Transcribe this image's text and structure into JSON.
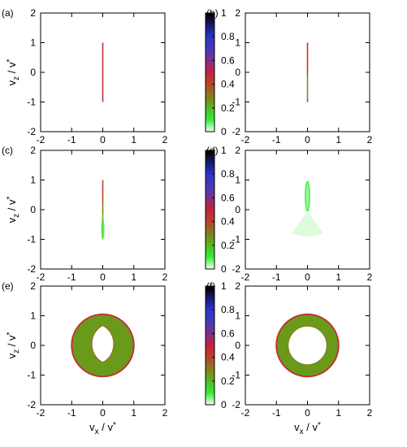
{
  "chart_data": [
    {
      "panel": "(a)",
      "type": "heatmap",
      "xlim": [
        -2,
        2
      ],
      "ylim": [
        -2,
        2
      ],
      "x_ticks": [
        "-2",
        "-1",
        "0",
        "1",
        "2"
      ],
      "y_ticks": [
        "-2",
        "-1",
        "0",
        "1",
        "2"
      ],
      "xlabel": "",
      "ylabel": "vz / v*",
      "colorbar": {
        "range": [
          0,
          1
        ],
        "ticks": [
          "0",
          "0.2",
          "0.4",
          "0.6",
          "0.8",
          "1"
        ]
      },
      "features": [
        {
          "kind": "vertical-line",
          "x": 0,
          "y": [
            -1,
            1
          ],
          "level": 0.45
        }
      ]
    },
    {
      "panel": "(b)",
      "type": "heatmap",
      "xlim": [
        -2,
        2
      ],
      "ylim": [
        -2,
        2
      ],
      "x_ticks": [
        "-2",
        "-1",
        "0",
        "1",
        "2"
      ],
      "y_ticks": [
        "-2",
        "-1",
        "0",
        "1",
        "2"
      ],
      "xlabel": "",
      "ylabel": "",
      "colorbar": {
        "range": [
          0,
          1
        ],
        "ticks": [
          "0",
          "0.2",
          "0.4",
          "0.6",
          "0.8",
          "1"
        ]
      },
      "features": [
        {
          "kind": "vertical-line",
          "x": 0,
          "y": [
            -0.1,
            1
          ],
          "level": 0.45
        },
        {
          "kind": "vertical-line",
          "x": 0,
          "y": [
            -0.9,
            -0.1
          ],
          "level": 0.25
        },
        {
          "kind": "vertical-line",
          "x": 0,
          "y": [
            -1,
            -0.9
          ],
          "level": 0.45
        }
      ]
    },
    {
      "panel": "(c)",
      "type": "heatmap",
      "xlim": [
        -2,
        2
      ],
      "ylim": [
        -2,
        2
      ],
      "x_ticks": [
        "-2",
        "-1",
        "0",
        "1",
        "2"
      ],
      "y_ticks": [
        "-2",
        "-1",
        "0",
        "1",
        "2"
      ],
      "xlabel": "",
      "ylabel": "vz / v*",
      "colorbar": {
        "range": [
          0,
          1
        ],
        "ticks": [
          "0",
          "0.2",
          "0.4",
          "0.6",
          "0.8",
          "1"
        ]
      },
      "features": [
        {
          "kind": "vertical-line",
          "x": 0,
          "y": [
            0.2,
            1
          ],
          "level": 0.4
        },
        {
          "kind": "vertical-line",
          "x": 0,
          "y": [
            -0.2,
            0.2
          ],
          "level": 0.3
        },
        {
          "kind": "teardrop",
          "cx": 0,
          "top": -0.1,
          "bottom": -1,
          "halfwidth": 0.08,
          "level": 0.1
        },
        {
          "kind": "vertical-line",
          "x": 0,
          "y": [
            -1,
            -0.2
          ],
          "level": 0.15
        }
      ]
    },
    {
      "panel": "(d)",
      "type": "heatmap",
      "xlim": [
        -2,
        2
      ],
      "ylim": [
        -2,
        2
      ],
      "x_ticks": [
        "-2",
        "-1",
        "0",
        "1",
        "2"
      ],
      "y_ticks": [
        "-2",
        "-1",
        "0",
        "1",
        "2"
      ],
      "xlabel": "",
      "ylabel": "",
      "colorbar": {
        "range": [
          0,
          1
        ],
        "ticks": [
          "0",
          "0.2",
          "0.4",
          "0.6",
          "0.8",
          "1"
        ]
      },
      "features": [
        {
          "kind": "fan",
          "cx": 0,
          "top": -0.05,
          "bottom": -0.9,
          "halfwidth": 0.5,
          "level": 0.03
        },
        {
          "kind": "ellipse-ring",
          "cx": 0,
          "cy": 0.45,
          "rx": 0.07,
          "ry": 0.5,
          "level": 0.12
        }
      ]
    },
    {
      "panel": "(e)",
      "type": "heatmap",
      "xlim": [
        -2,
        2
      ],
      "ylim": [
        -2,
        2
      ],
      "x_ticks": [
        "-2",
        "-1",
        "0",
        "1",
        "2"
      ],
      "y_ticks": [
        "-2",
        "-1",
        "0",
        "1",
        "2"
      ],
      "xlabel": "vx / v*",
      "ylabel": "vz / v*",
      "colorbar": {
        "range": [
          0,
          1
        ],
        "ticks": [
          "0",
          "0.2",
          "0.4",
          "0.6",
          "0.8",
          "1"
        ]
      },
      "features": [
        {
          "kind": "disk",
          "cx": 0,
          "cy": 0,
          "r": 1.0,
          "level": 0.25,
          "edge_level": 0.45
        },
        {
          "kind": "lens-hole",
          "cx": 0,
          "cy": 0.05,
          "halfwidth": 0.36,
          "halfheight": 0.62
        }
      ]
    },
    {
      "panel": "(f)",
      "type": "heatmap",
      "xlim": [
        -2,
        2
      ],
      "ylim": [
        -2,
        2
      ],
      "x_ticks": [
        "-2",
        "-1",
        "0",
        "1",
        "2"
      ],
      "y_ticks": [
        "-2",
        "-1",
        "0",
        "1",
        "2"
      ],
      "xlabel": "vx / v*",
      "ylabel": "",
      "colorbar": {
        "range": [
          0,
          1
        ],
        "ticks": [
          "0",
          "0.2",
          "0.4",
          "0.6",
          "0.8",
          "1"
        ]
      },
      "features": [
        {
          "kind": "annulus",
          "cx": 0,
          "cy": 0,
          "r_outer": 1.0,
          "r_inner": 0.62,
          "level": 0.25,
          "edge_level": 0.45
        }
      ]
    }
  ],
  "colormap": {
    "stops": [
      {
        "v": 0.0,
        "color": "#f2fff2"
      },
      {
        "v": 0.1,
        "color": "#33ee33"
      },
      {
        "v": 0.25,
        "color": "#6a9a1a"
      },
      {
        "v": 0.4,
        "color": "#b8452a"
      },
      {
        "v": 0.5,
        "color": "#c8203c"
      },
      {
        "v": 0.65,
        "color": "#5a3aa8"
      },
      {
        "v": 0.8,
        "color": "#2a35d0"
      },
      {
        "v": 1.0,
        "color": "#000000"
      }
    ]
  }
}
